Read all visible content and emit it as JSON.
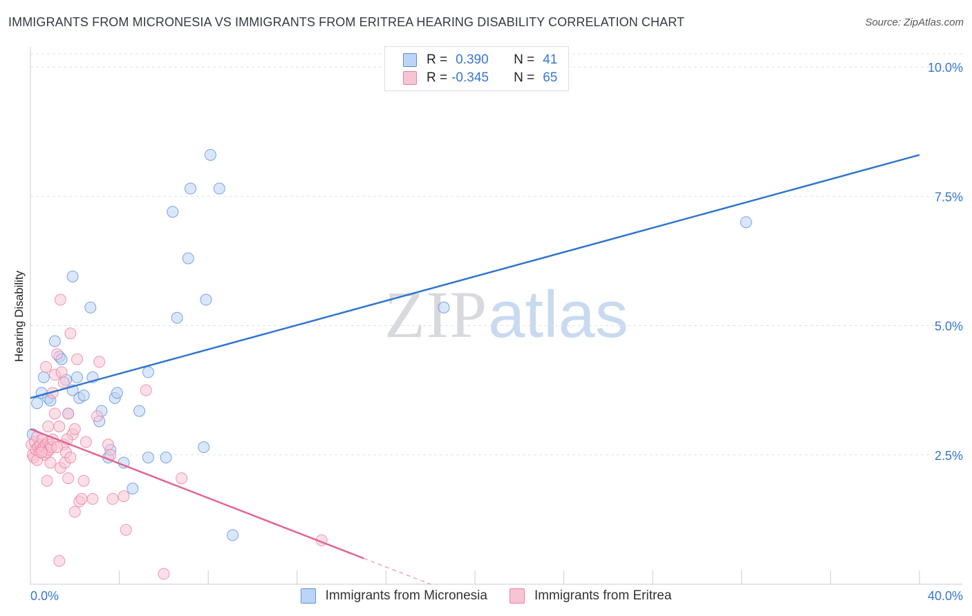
{
  "title": "IMMIGRANTS FROM MICRONESIA VS IMMIGRANTS FROM ERITREA HEARING DISABILITY CORRELATION CHART",
  "source": "Source: ZipAtlas.com",
  "watermark": {
    "zip": "ZIP",
    "atlas": "atlas"
  },
  "legend": {
    "rows": [
      {
        "r_label": "R =",
        "r_value": "0.390",
        "n_label": "N =",
        "n_value": "41"
      },
      {
        "r_label": "R =",
        "r_value": "-0.345",
        "n_label": "N =",
        "n_value": "65"
      }
    ]
  },
  "colors": {
    "micronesia_fill": "#bcd4f5",
    "micronesia_stroke": "#5a8fd8",
    "micronesia_line": "#2f75cc",
    "eritrea_fill": "#f7c4d3",
    "eritrea_stroke": "#ea7fa2",
    "eritrea_line": "#e26490",
    "tick_label": "#3576d0",
    "grid": "#dde1e8"
  },
  "chart_data": {
    "type": "scatter",
    "title": "IMMIGRANTS FROM MICRONESIA VS IMMIGRANTS FROM ERITREA HEARING DISABILITY CORRELATION CHART",
    "xlabel": "",
    "ylabel": "Hearing Disability",
    "xlim": [
      0,
      40
    ],
    "ylim": [
      0,
      10.5
    ],
    "x_tick_labels": [
      "0.0%",
      "40.0%"
    ],
    "y_ticks": [
      2.5,
      5.0,
      7.5,
      10.0
    ],
    "y_tick_labels": [
      "2.5%",
      "5.0%",
      "7.5%",
      "10.0%"
    ],
    "grid": "horizontal dashed",
    "legend_position": "top-center",
    "series": [
      {
        "name": "Immigrants from Micronesia",
        "R": 0.39,
        "N": 41,
        "points": [
          [
            0.1,
            2.9
          ],
          [
            0.3,
            3.5
          ],
          [
            0.5,
            3.7
          ],
          [
            0.6,
            4.0
          ],
          [
            0.8,
            3.6
          ],
          [
            0.9,
            3.55
          ],
          [
            1.1,
            4.7
          ],
          [
            1.3,
            4.4
          ],
          [
            1.4,
            4.35
          ],
          [
            1.6,
            3.95
          ],
          [
            1.7,
            3.3
          ],
          [
            1.9,
            3.75
          ],
          [
            2.1,
            4.0
          ],
          [
            2.2,
            3.6
          ],
          [
            2.4,
            3.65
          ],
          [
            1.9,
            5.95
          ],
          [
            2.7,
            5.35
          ],
          [
            2.8,
            4.0
          ],
          [
            3.1,
            3.15
          ],
          [
            3.2,
            3.35
          ],
          [
            3.5,
            2.45
          ],
          [
            3.6,
            2.6
          ],
          [
            3.8,
            3.6
          ],
          [
            3.9,
            3.7
          ],
          [
            4.2,
            2.35
          ],
          [
            4.6,
            1.85
          ],
          [
            4.9,
            3.35
          ],
          [
            5.3,
            4.1
          ],
          [
            5.3,
            2.45
          ],
          [
            6.1,
            2.45
          ],
          [
            6.4,
            7.2
          ],
          [
            6.6,
            5.15
          ],
          [
            7.1,
            6.3
          ],
          [
            7.2,
            7.65
          ],
          [
            7.8,
            2.65
          ],
          [
            7.9,
            5.5
          ],
          [
            8.1,
            8.3
          ],
          [
            8.5,
            7.65
          ],
          [
            9.1,
            0.95
          ],
          [
            18.6,
            5.35
          ],
          [
            32.2,
            7.0
          ]
        ],
        "trendline": {
          "x": [
            0,
            40
          ],
          "y": [
            3.6,
            8.3
          ]
        }
      },
      {
        "name": "Immigrants from Eritrea",
        "R": -0.345,
        "N": 65,
        "points": [
          [
            0.05,
            2.7
          ],
          [
            0.1,
            2.5
          ],
          [
            0.15,
            2.45
          ],
          [
            0.2,
            2.75
          ],
          [
            0.25,
            2.6
          ],
          [
            0.3,
            2.85
          ],
          [
            0.35,
            2.65
          ],
          [
            0.4,
            2.55
          ],
          [
            0.45,
            2.7
          ],
          [
            0.5,
            2.6
          ],
          [
            0.55,
            2.8
          ],
          [
            0.6,
            2.65
          ],
          [
            0.65,
            2.5
          ],
          [
            0.7,
            2.7
          ],
          [
            0.75,
            2.55
          ],
          [
            0.8,
            2.75
          ],
          [
            0.85,
            2.6
          ],
          [
            0.9,
            2.7
          ],
          [
            0.95,
            2.65
          ],
          [
            1.0,
            2.8
          ],
          [
            0.7,
            4.2
          ],
          [
            0.8,
            3.05
          ],
          [
            0.9,
            2.35
          ],
          [
            0.75,
            2.0
          ],
          [
            1.0,
            3.7
          ],
          [
            1.1,
            3.3
          ],
          [
            1.1,
            4.05
          ],
          [
            1.2,
            4.45
          ],
          [
            1.3,
            3.05
          ],
          [
            1.35,
            2.25
          ],
          [
            1.35,
            5.5
          ],
          [
            1.4,
            4.1
          ],
          [
            1.5,
            3.9
          ],
          [
            1.5,
            2.7
          ],
          [
            1.55,
            2.35
          ],
          [
            1.6,
            2.55
          ],
          [
            1.7,
            2.05
          ],
          [
            1.7,
            3.3
          ],
          [
            1.8,
            2.45
          ],
          [
            1.8,
            4.85
          ],
          [
            1.9,
            2.9
          ],
          [
            2.0,
            3.0
          ],
          [
            2.1,
            4.35
          ],
          [
            2.2,
            1.6
          ],
          [
            2.4,
            2.0
          ],
          [
            2.0,
            1.4
          ],
          [
            2.3,
            1.65
          ],
          [
            1.3,
            0.45
          ],
          [
            2.8,
            1.65
          ],
          [
            3.0,
            3.25
          ],
          [
            3.1,
            4.3
          ],
          [
            3.5,
            2.7
          ],
          [
            3.6,
            2.5
          ],
          [
            3.7,
            1.65
          ],
          [
            4.2,
            1.7
          ],
          [
            4.3,
            1.05
          ],
          [
            5.2,
            3.75
          ],
          [
            6.0,
            0.2
          ],
          [
            6.8,
            2.05
          ],
          [
            13.1,
            0.85
          ],
          [
            0.3,
            2.4
          ],
          [
            0.5,
            2.55
          ],
          [
            1.2,
            2.65
          ],
          [
            2.5,
            2.75
          ],
          [
            1.65,
            2.8
          ]
        ],
        "trendline": {
          "x": [
            0,
            18
          ],
          "y": [
            3.0,
            0.0
          ],
          "solid_until_x": 15.0
        }
      }
    ]
  }
}
